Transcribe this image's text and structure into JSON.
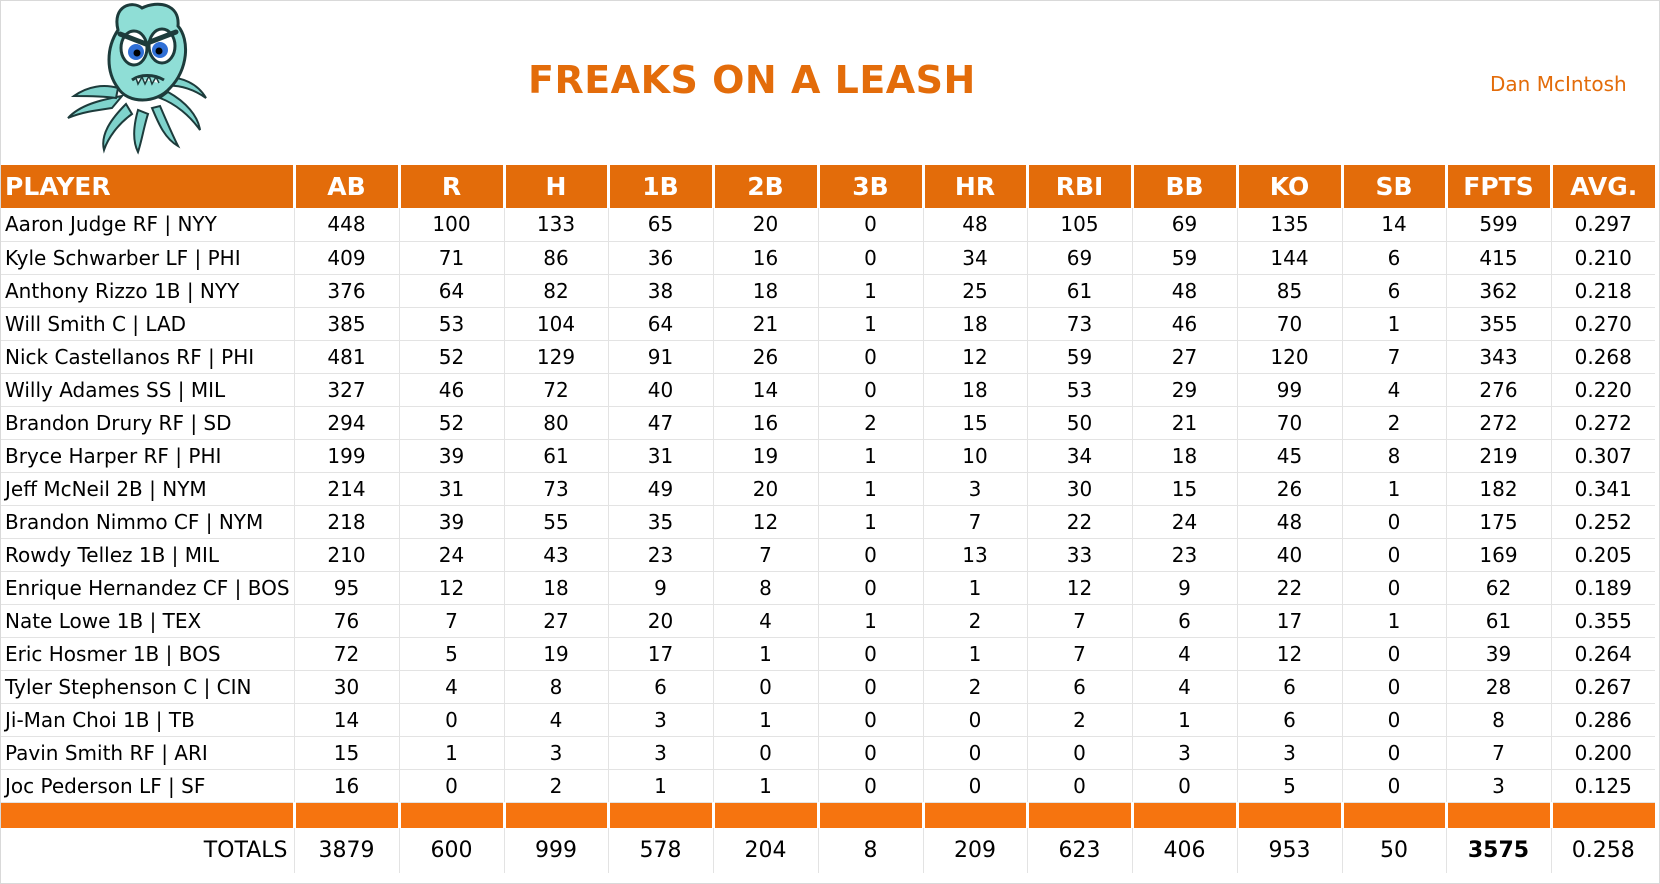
{
  "header": {
    "team_name": "FREAKS ON A LEASH",
    "owner": "Dan McIntosh",
    "logo_icon": "octopus-mascot-icon"
  },
  "colors": {
    "accent": "#e36c0a",
    "band": "#f6740f"
  },
  "table": {
    "columns": [
      "PLAYER",
      "AB",
      "R",
      "H",
      "1B",
      "2B",
      "3B",
      "HR",
      "RBI",
      "BB",
      "KO",
      "SB",
      "FPTS",
      "AVG."
    ],
    "rows": [
      [
        "Aaron Judge RF | NYY",
        "448",
        "100",
        "133",
        "65",
        "20",
        "0",
        "48",
        "105",
        "69",
        "135",
        "14",
        "599",
        "0.297"
      ],
      [
        "Kyle Schwarber LF | PHI",
        "409",
        "71",
        "86",
        "36",
        "16",
        "0",
        "34",
        "69",
        "59",
        "144",
        "6",
        "415",
        "0.210"
      ],
      [
        "Anthony Rizzo 1B | NYY",
        "376",
        "64",
        "82",
        "38",
        "18",
        "1",
        "25",
        "61",
        "48",
        "85",
        "6",
        "362",
        "0.218"
      ],
      [
        "Will Smith C | LAD",
        "385",
        "53",
        "104",
        "64",
        "21",
        "1",
        "18",
        "73",
        "46",
        "70",
        "1",
        "355",
        "0.270"
      ],
      [
        "Nick Castellanos RF | PHI",
        "481",
        "52",
        "129",
        "91",
        "26",
        "0",
        "12",
        "59",
        "27",
        "120",
        "7",
        "343",
        "0.268"
      ],
      [
        "Willy Adames SS | MIL",
        "327",
        "46",
        "72",
        "40",
        "14",
        "0",
        "18",
        "53",
        "29",
        "99",
        "4",
        "276",
        "0.220"
      ],
      [
        "Brandon Drury RF | SD",
        "294",
        "52",
        "80",
        "47",
        "16",
        "2",
        "15",
        "50",
        "21",
        "70",
        "2",
        "272",
        "0.272"
      ],
      [
        "Bryce Harper RF | PHI",
        "199",
        "39",
        "61",
        "31",
        "19",
        "1",
        "10",
        "34",
        "18",
        "45",
        "8",
        "219",
        "0.307"
      ],
      [
        "Jeff McNeil 2B | NYM",
        "214",
        "31",
        "73",
        "49",
        "20",
        "1",
        "3",
        "30",
        "15",
        "26",
        "1",
        "182",
        "0.341"
      ],
      [
        "Brandon Nimmo CF | NYM",
        "218",
        "39",
        "55",
        "35",
        "12",
        "1",
        "7",
        "22",
        "24",
        "48",
        "0",
        "175",
        "0.252"
      ],
      [
        "Rowdy Tellez 1B | MIL",
        "210",
        "24",
        "43",
        "23",
        "7",
        "0",
        "13",
        "33",
        "23",
        "40",
        "0",
        "169",
        "0.205"
      ],
      [
        "Enrique Hernandez CF | BOS",
        "95",
        "12",
        "18",
        "9",
        "8",
        "0",
        "1",
        "12",
        "9",
        "22",
        "0",
        "62",
        "0.189"
      ],
      [
        "Nate Lowe 1B | TEX",
        "76",
        "7",
        "27",
        "20",
        "4",
        "1",
        "2",
        "7",
        "6",
        "17",
        "1",
        "61",
        "0.355"
      ],
      [
        "Eric Hosmer 1B | BOS",
        "72",
        "5",
        "19",
        "17",
        "1",
        "0",
        "1",
        "7",
        "4",
        "12",
        "0",
        "39",
        "0.264"
      ],
      [
        "Tyler Stephenson C | CIN",
        "30",
        "4",
        "8",
        "6",
        "0",
        "0",
        "2",
        "6",
        "4",
        "6",
        "0",
        "28",
        "0.267"
      ],
      [
        "Ji-Man Choi 1B | TB",
        "14",
        "0",
        "4",
        "3",
        "1",
        "0",
        "0",
        "2",
        "1",
        "6",
        "0",
        "8",
        "0.286"
      ],
      [
        "Pavin Smith RF | ARI",
        "15",
        "1",
        "3",
        "3",
        "0",
        "0",
        "0",
        "0",
        "3",
        "3",
        "0",
        "7",
        "0.200"
      ],
      [
        "Joc Pederson LF | SF",
        "16",
        "0",
        "2",
        "1",
        "1",
        "0",
        "0",
        "0",
        "0",
        "5",
        "0",
        "3",
        "0.125"
      ]
    ],
    "totals": [
      "TOTALS",
      "3879",
      "600",
      "999",
      "578",
      "204",
      "8",
      "209",
      "623",
      "406",
      "953",
      "50",
      "3575",
      "0.258"
    ]
  }
}
